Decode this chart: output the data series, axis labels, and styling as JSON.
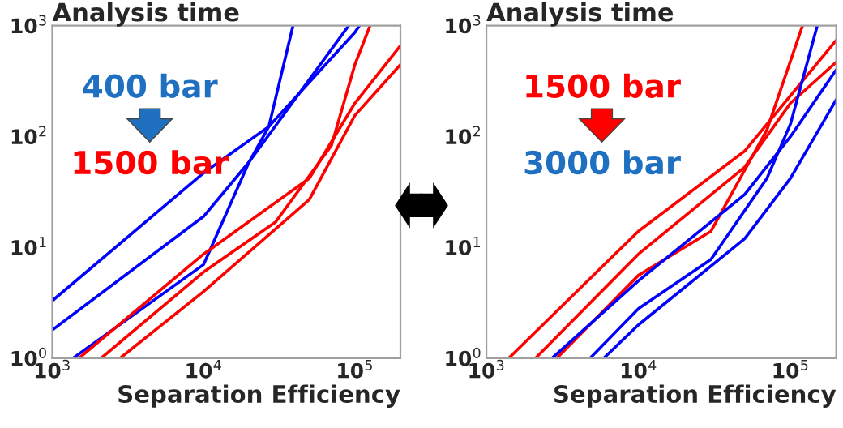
{
  "chart_data": [
    {
      "type": "line",
      "title": "Analysis time",
      "xlabel": "Separation Efficiency",
      "log": "xy",
      "grid": false,
      "legend": false,
      "xlim": [
        1000,
        200000
      ],
      "ylim": [
        1,
        1000
      ],
      "xticks": [
        {
          "value": 1000,
          "label": "10$^{3}$"
        },
        {
          "value": 10000,
          "label": "10$^{4}$"
        },
        {
          "value": 100000,
          "label": "10$^{5}$"
        }
      ],
      "yticks": [
        {
          "value": 1,
          "label": "10$^{0}$"
        },
        {
          "value": 10,
          "label": "10$^{1}$"
        },
        {
          "value": 100,
          "label": "10$^{2}$"
        },
        {
          "value": 1000,
          "label": "10$^{3}$"
        }
      ],
      "annotations": [
        "400 bar",
        "1500 bar"
      ],
      "series": [
        {
          "color": "#0000ff",
          "x": [
            1000,
            10000,
            27000,
            100000,
            107000
          ],
          "values": [
            3.3,
            47,
            123,
            870,
            1000
          ]
        },
        {
          "color": "#0000ff",
          "x": [
            1000,
            10000,
            20000,
            91000
          ],
          "values": [
            1.8,
            19,
            59,
            1000
          ]
        },
        {
          "color": "#0000ff",
          "x": [
            1370,
            10000,
            20000,
            27000,
            39000
          ],
          "values": [
            1,
            7,
            59,
            123,
            1000
          ]
        },
        {
          "color": "#ff0000",
          "x": [
            1500,
            10000,
            50000,
            100000,
            200000
          ],
          "values": [
            1,
            8.7,
            42,
            200,
            660
          ]
        },
        {
          "color": "#ff0000",
          "x": [
            2800,
            10000,
            50000,
            100000,
            200000
          ],
          "values": [
            1,
            4,
            27,
            155,
            445
          ]
        },
        {
          "color": "#ff0000",
          "x": [
            2100,
            10000,
            30000,
            70000,
            100000,
            126000
          ],
          "values": [
            1,
            6,
            17,
            83,
            445,
            1000
          ]
        }
      ]
    },
    {
      "type": "line",
      "title": "Analysis time",
      "xlabel": "Separation Efficiency",
      "log": "xy",
      "grid": false,
      "legend": false,
      "xlim": [
        1000,
        200000
      ],
      "ylim": [
        1,
        1000
      ],
      "xticks": [
        {
          "value": 1000,
          "label": "10$^{3}$"
        },
        {
          "value": 10000,
          "label": "10$^{4}$"
        },
        {
          "value": 100000,
          "label": "10$^{5}$"
        }
      ],
      "yticks": [
        {
          "value": 1,
          "label": "10$^{0}$"
        },
        {
          "value": 10,
          "label": "10$^{1}$"
        },
        {
          "value": 100,
          "label": "10$^{2}$"
        },
        {
          "value": 1000,
          "label": "10$^{3}$"
        }
      ],
      "annotations": [
        "1500 bar",
        "3000 bar"
      ],
      "series": [
        {
          "color": "#ff0000",
          "x": [
            1400,
            10000,
            50000,
            200000
          ],
          "values": [
            1,
            14,
            74,
            740
          ]
        },
        {
          "color": "#ff0000",
          "x": [
            2100,
            10000,
            50000,
            100000,
            200000
          ],
          "values": [
            1,
            8.7,
            53,
            200,
            470
          ]
        },
        {
          "color": "#ff0000",
          "x": [
            2900,
            10000,
            30000,
            70000,
            120000
          ],
          "values": [
            1,
            5.6,
            14,
            115,
            1000
          ]
        },
        {
          "color": "#0000ff",
          "x": [
            2700,
            10000,
            50000,
            100000,
            200000
          ],
          "values": [
            1,
            5,
            30,
            100,
            400
          ]
        },
        {
          "color": "#0000ff",
          "x": [
            4800,
            10000,
            30000,
            70000,
            100000,
            150000
          ],
          "values": [
            1,
            2.8,
            7.8,
            42,
            130,
            1000
          ]
        },
        {
          "color": "#0000ff",
          "x": [
            5900,
            10000,
            50000,
            100000,
            200000
          ],
          "values": [
            1,
            2,
            12,
            42,
            215
          ]
        }
      ]
    }
  ]
}
